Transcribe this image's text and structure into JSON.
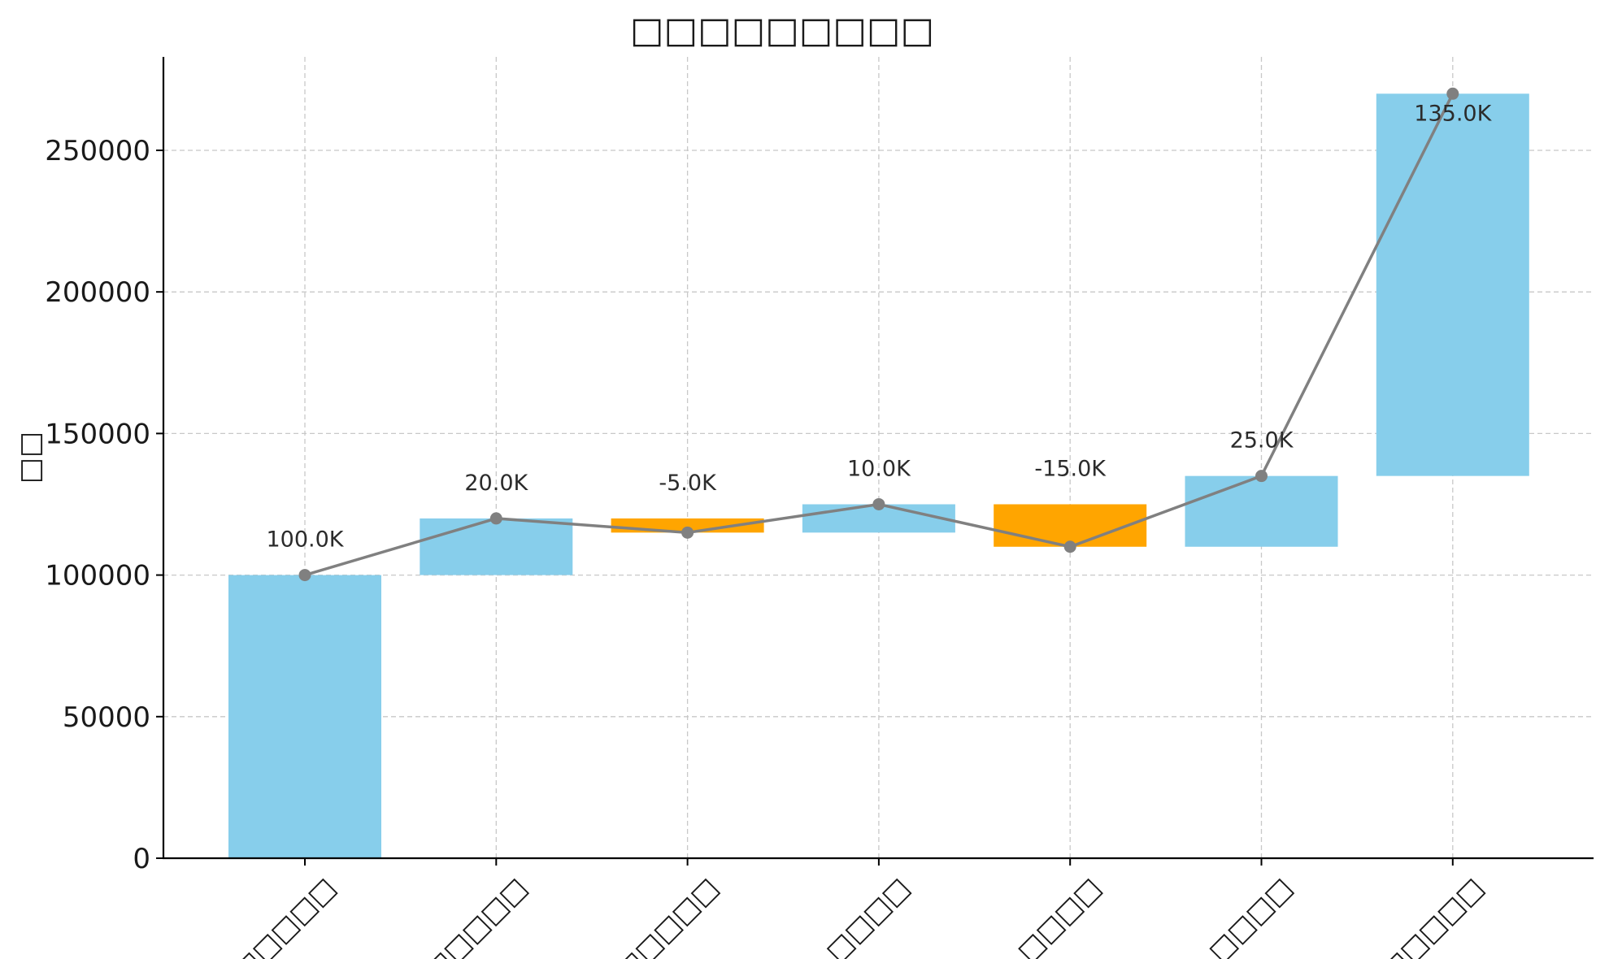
{
  "chart_data": {
    "type": "bar",
    "subtype": "waterfall",
    "title": "□□□□□□□□□",
    "ylabel": "□□",
    "xlabel": "",
    "categories": [
      "□□□□□",
      "□□□□□",
      "□□□□□",
      "□□□□",
      "□□□□",
      "□□□□",
      "□□□□□"
    ],
    "series": [
      {
        "changes": [
          100000,
          20000,
          -5000,
          10000,
          -15000,
          25000,
          135000
        ],
        "bar_start": [
          0,
          100000,
          115000,
          115000,
          110000,
          110000,
          135000
        ],
        "bar_end": [
          100000,
          120000,
          120000,
          125000,
          125000,
          135000,
          270000
        ],
        "cumulative": [
          100000,
          120000,
          115000,
          125000,
          110000,
          135000,
          270000
        ],
        "labels": [
          "100.0K",
          "20.0K",
          "-5.0K",
          "10.0K",
          "-15.0K",
          "25.0K",
          "135.0K"
        ]
      }
    ],
    "ylim": [
      0,
      283000
    ],
    "yticks": [
      0,
      50000,
      100000,
      150000,
      200000,
      250000
    ],
    "ytick_labels": [
      "0",
      "50000",
      "100000",
      "150000",
      "200000",
      "250000"
    ],
    "grid": true,
    "legend": "none",
    "colors": {
      "increase": "#87ceeb",
      "decrease": "#ffa500",
      "line": "#808080",
      "axis": "#000000"
    }
  }
}
